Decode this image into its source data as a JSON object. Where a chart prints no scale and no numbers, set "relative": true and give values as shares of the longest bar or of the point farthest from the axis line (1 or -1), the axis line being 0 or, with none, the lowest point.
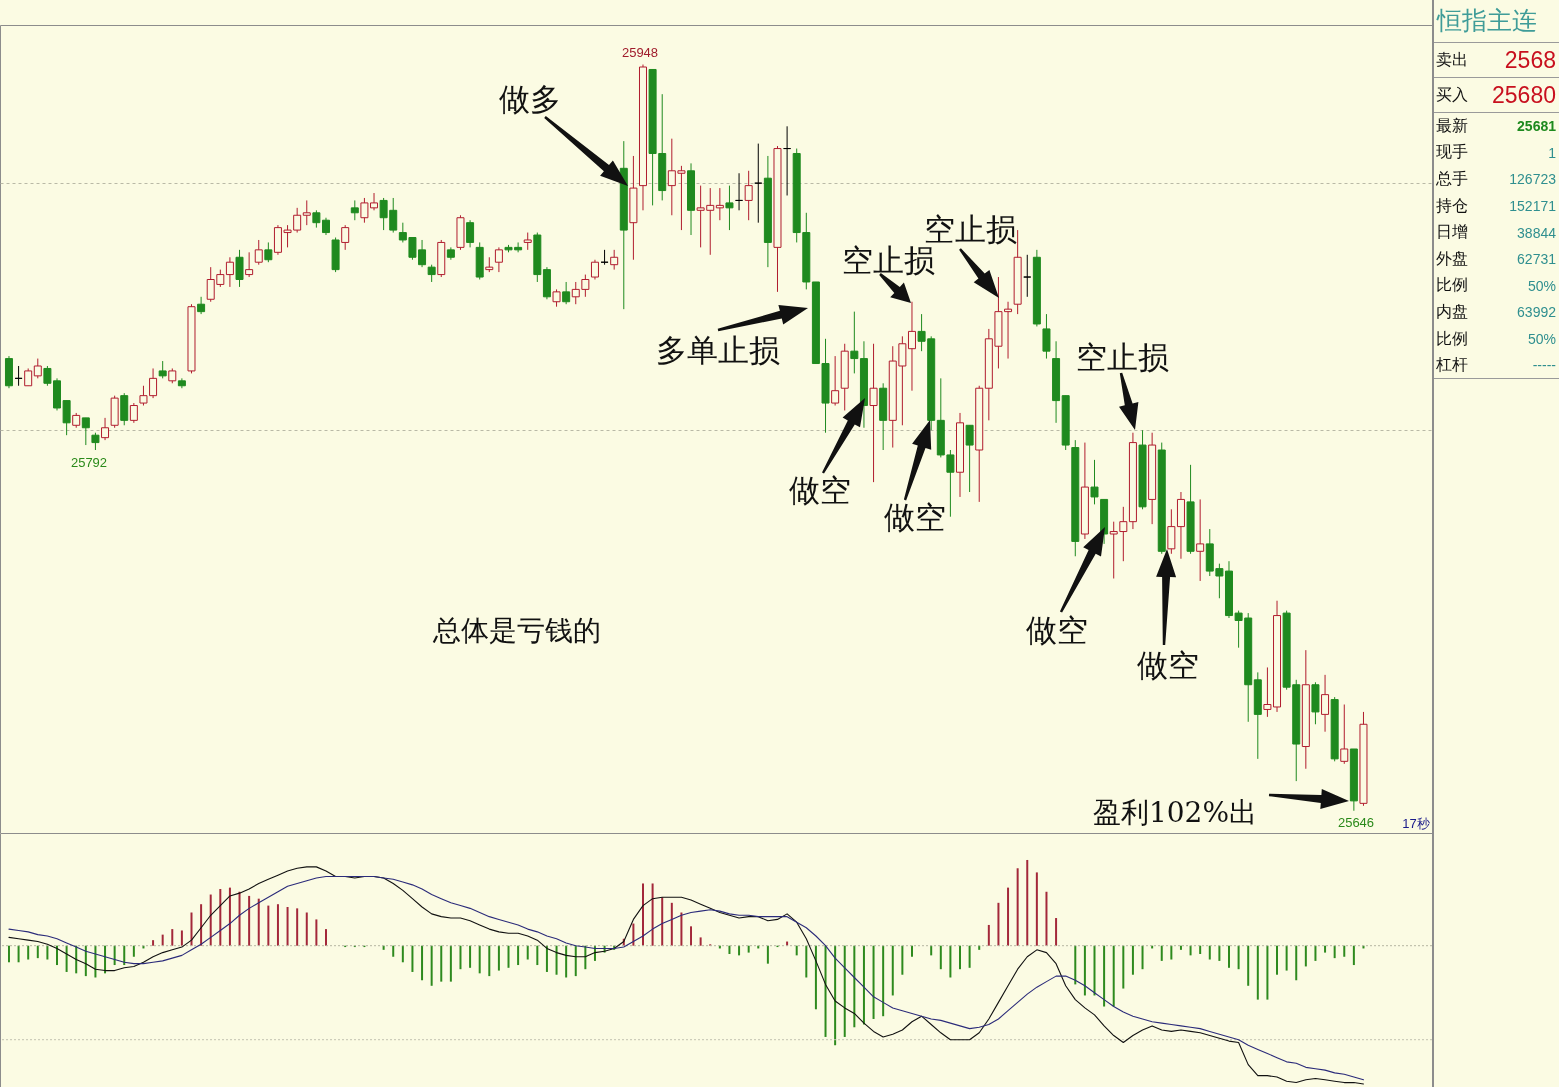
{
  "chart_data": [
    {
      "type": "candlestick",
      "categories": [
        null,
        null,
        null,
        null,
        null,
        null,
        null,
        null,
        null,
        null,
        null,
        null,
        null,
        null,
        null,
        null,
        null,
        null,
        null,
        null,
        null,
        null,
        null,
        null,
        null,
        null,
        null,
        null,
        null,
        null,
        null,
        null,
        null,
        null,
        null,
        null,
        null,
        null,
        null,
        null,
        null,
        null,
        null,
        null,
        null,
        null,
        null,
        null,
        null,
        null,
        null,
        null,
        null,
        null,
        null,
        null,
        null,
        null,
        null,
        null,
        null,
        null,
        null,
        null,
        null,
        null,
        null,
        null,
        null,
        null,
        null,
        null,
        null,
        null,
        null,
        null,
        null,
        null,
        null,
        null,
        null,
        null,
        null,
        null,
        null,
        null,
        null,
        null,
        null,
        null,
        null,
        null,
        null,
        null,
        null,
        null,
        null,
        null,
        null,
        null,
        null,
        null,
        null,
        null,
        null,
        null,
        null,
        null,
        null,
        null,
        null,
        null,
        null,
        null,
        null,
        null,
        null,
        null,
        null,
        null,
        null,
        null,
        null,
        null,
        null,
        null,
        null,
        null,
        null,
        null,
        null,
        null,
        null,
        null,
        null,
        null,
        null,
        null,
        null,
        null,
        null,
        null
      ],
      "ohlc": [
        [
          25829,
          25830,
          25817,
          25818
        ],
        [
          25821,
          25826,
          25818,
          25821
        ],
        [
          25818,
          25825,
          25818,
          25824
        ],
        [
          25822,
          25829,
          25821,
          25826
        ],
        [
          25825,
          25826,
          25818,
          25819
        ],
        [
          25820,
          25821,
          25808,
          25809
        ],
        [
          25812,
          25812,
          25798,
          25803
        ],
        [
          25802,
          25807,
          25801,
          25806
        ],
        [
          25805,
          25805,
          25794,
          25801
        ],
        [
          25798,
          25799,
          25792,
          25795
        ],
        [
          25797,
          25805,
          25796,
          25801
        ],
        [
          25802,
          25814,
          25801,
          25813
        ],
        [
          25814,
          25815,
          25802,
          25804
        ],
        [
          25804,
          25811,
          25803,
          25810
        ],
        [
          25811,
          25818,
          25810,
          25814
        ],
        [
          25814,
          25825,
          25813,
          25821
        ],
        [
          25824,
          25828,
          25821,
          25822
        ],
        [
          25820,
          25825,
          25819,
          25824
        ],
        [
          25820,
          25821,
          25817,
          25818
        ],
        [
          25824,
          25851,
          25823,
          25850
        ],
        [
          25851,
          25854,
          25847,
          25848
        ],
        [
          25853,
          25866,
          25852,
          25861
        ],
        [
          25859,
          25865,
          25858,
          25863
        ],
        [
          25863,
          25870,
          25858,
          25868
        ],
        [
          25870,
          25873,
          25858,
          25861
        ],
        [
          25863,
          25872,
          25862,
          25865
        ],
        [
          25868,
          25877,
          25867,
          25873
        ],
        [
          25873,
          25876,
          25868,
          25869
        ],
        [
          25872,
          25883,
          25871,
          25882
        ],
        [
          25880,
          25883,
          25874,
          25881
        ],
        [
          25881,
          25890,
          25880,
          25887
        ],
        [
          25887,
          25893,
          25883,
          25888
        ],
        [
          25888,
          25889,
          25882,
          25884
        ],
        [
          25885,
          25886,
          25879,
          25880
        ],
        [
          25877,
          25878,
          25864,
          25865
        ],
        [
          25876,
          25883,
          25873,
          25882
        ],
        [
          25890,
          25893,
          25885,
          25888
        ],
        [
          25886,
          25894,
          25884,
          25892
        ],
        [
          25890,
          25896,
          25889,
          25892
        ],
        [
          25893,
          25894,
          25881,
          25886
        ],
        [
          25889,
          25894,
          25880,
          25881
        ],
        [
          25880,
          25884,
          25876,
          25877
        ],
        [
          25878,
          25878,
          25869,
          25870
        ],
        [
          25873,
          25877,
          25866,
          25867
        ],
        [
          25866,
          25867,
          25860,
          25863
        ],
        [
          25863,
          25877,
          25862,
          25876
        ],
        [
          25873,
          25874,
          25869,
          25870
        ],
        [
          25874,
          25887,
          25873,
          25886
        ],
        [
          25884,
          25885,
          25874,
          25876
        ],
        [
          25874,
          25876,
          25861,
          25862
        ],
        [
          25865,
          25870,
          25864,
          25866
        ],
        [
          25868,
          25874,
          25864,
          25873
        ],
        [
          25874,
          25875,
          25872,
          25873
        ],
        [
          25874,
          25876,
          25872,
          25873
        ],
        [
          25876,
          25880,
          25873,
          25877
        ],
        [
          25879,
          25880,
          25860,
          25863
        ],
        [
          25865,
          25866,
          25853,
          25854
        ],
        [
          25852,
          25857,
          25850,
          25856
        ],
        [
          25856,
          25860,
          25851,
          25852
        ],
        [
          25854,
          25860,
          25851,
          25857
        ],
        [
          25857,
          25863,
          25854,
          25861
        ],
        [
          25862,
          25869,
          25861,
          25868
        ],
        [
          25868,
          25873,
          25867,
          25868
        ],
        [
          25867,
          25873,
          25865,
          25870
        ],
        [
          25906,
          25917,
          25849,
          25881
        ],
        [
          25884,
          25911,
          25869,
          25898
        ],
        [
          25899,
          25948,
          25889,
          25947
        ],
        [
          25946,
          25946,
          25891,
          25912
        ],
        [
          25912,
          25936,
          25893,
          25897
        ],
        [
          25899,
          25918,
          25887,
          25905
        ],
        [
          25904,
          25907,
          25881,
          25905
        ],
        [
          25905,
          25908,
          25879,
          25889
        ],
        [
          25889,
          25899,
          25874,
          25890
        ],
        [
          25889,
          25898,
          25871,
          25891
        ],
        [
          25890,
          25898,
          25885,
          25891
        ],
        [
          25892,
          25899,
          25881,
          25890
        ],
        [
          25893,
          25904,
          25889,
          25893
        ],
        [
          25893,
          25905,
          25885,
          25899
        ],
        [
          25900,
          25916,
          25884,
          25900
        ],
        [
          25902,
          25911,
          25866,
          25876
        ],
        [
          25874,
          25915,
          25856,
          25914
        ],
        [
          25914,
          25923,
          25895,
          25914
        ],
        [
          25912,
          25914,
          25876,
          25880
        ],
        [
          25880,
          25888,
          25857,
          25860
        ],
        [
          25860,
          25860,
          25827,
          25827
        ],
        [
          25827,
          25837,
          25799,
          25811
        ],
        [
          25811,
          25830,
          25810,
          25816
        ],
        [
          25817,
          25835,
          25808,
          25832
        ],
        [
          25832,
          25848,
          25823,
          25829
        ],
        [
          25829,
          25836,
          25801,
          25810
        ],
        [
          25810,
          25835,
          25779,
          25817
        ],
        [
          25817,
          25819,
          25792,
          25804
        ],
        [
          25804,
          25834,
          25793,
          25828
        ],
        [
          25826,
          25838,
          25802,
          25835
        ],
        [
          25833,
          25852,
          25816,
          25840
        ],
        [
          25840,
          25847,
          25832,
          25836
        ],
        [
          25837,
          25838,
          25800,
          25804
        ],
        [
          25804,
          25821,
          25789,
          25790
        ],
        [
          25790,
          25792,
          25765,
          25783
        ],
        [
          25783,
          25807,
          25773,
          25803
        ],
        [
          25802,
          25802,
          25775,
          25794
        ],
        [
          25792,
          25818,
          25771,
          25817
        ],
        [
          25817,
          25841,
          25804,
          25837
        ],
        [
          25834,
          25862,
          25825,
          25848
        ],
        [
          25848,
          25852,
          25829,
          25849
        ],
        [
          25851,
          25881,
          25847,
          25870
        ],
        [
          25862,
          25871,
          25854,
          25862
        ],
        [
          25870,
          25873,
          25842,
          25843
        ],
        [
          25841,
          25847,
          25829,
          25832
        ],
        [
          25829,
          25836,
          25803,
          25812
        ],
        [
          25814,
          25814,
          25792,
          25794
        ],
        [
          25793,
          25796,
          25749,
          25755
        ],
        [
          25758,
          25795,
          25756,
          25777
        ],
        [
          25777,
          25788,
          25770,
          25773
        ],
        [
          25772,
          25772,
          25754,
          25758
        ],
        [
          25758,
          25763,
          25740,
          25759
        ],
        [
          25759,
          25769,
          25747,
          25763
        ],
        [
          25763,
          25799,
          25760,
          25795
        ],
        [
          25794,
          25800,
          25768,
          25769
        ],
        [
          25772,
          25799,
          25762,
          25794
        ],
        [
          25792,
          25795,
          25750,
          25751
        ],
        [
          25752,
          25768,
          25750,
          25761
        ],
        [
          25761,
          25775,
          25748,
          25772
        ],
        [
          25771,
          25786,
          25750,
          25751
        ],
        [
          25751,
          25772,
          25739,
          25754
        ],
        [
          25754,
          25760,
          25741,
          25743
        ],
        [
          25744,
          25746,
          25732,
          25741
        ],
        [
          25743,
          25747,
          25724,
          25725
        ],
        [
          25726,
          25727,
          25712,
          25723
        ],
        [
          25724,
          25726,
          25682,
          25697
        ],
        [
          25699,
          25702,
          25667,
          25685
        ],
        [
          25687,
          25704,
          25684,
          25689
        ],
        [
          25688,
          25731,
          25686,
          25725
        ],
        [
          25726,
          25727,
          25695,
          25696
        ],
        [
          25697,
          25699,
          25658,
          25673
        ],
        [
          25672,
          25711,
          25663,
          25697
        ],
        [
          25697,
          25698,
          25681,
          25686
        ],
        [
          25685,
          25701,
          25678,
          25693
        ],
        [
          25691,
          25692,
          25666,
          25667
        ],
        [
          25666,
          25689,
          25665,
          25671
        ],
        [
          25671,
          25671,
          25646,
          25650
        ],
        [
          25649,
          25686,
          25648,
          25681
        ]
      ],
      "colors": [
        "#1f8a1f",
        "#000000",
        "#b01c2e",
        "#b01c2e",
        "#1f8a1f",
        "#1f8a1f",
        "#1f8a1f",
        "#b01c2e",
        "#1f8a1f",
        "#1f8a1f",
        "#b01c2e",
        "#b01c2e",
        "#1f8a1f",
        "#b01c2e",
        "#b01c2e",
        "#b01c2e",
        "#1f8a1f",
        "#b01c2e",
        "#1f8a1f",
        "#b01c2e",
        "#1f8a1f",
        "#b01c2e",
        "#b01c2e",
        "#b01c2e",
        "#1f8a1f",
        "#b01c2e",
        "#b01c2e",
        "#1f8a1f",
        "#b01c2e",
        "#b01c2e",
        "#b01c2e",
        "#b01c2e",
        "#1f8a1f",
        "#1f8a1f",
        "#1f8a1f",
        "#b01c2e",
        "#1f8a1f",
        "#b01c2e",
        "#b01c2e",
        "#1f8a1f",
        "#1f8a1f",
        "#1f8a1f",
        "#1f8a1f",
        "#1f8a1f",
        "#1f8a1f",
        "#b01c2e",
        "#1f8a1f",
        "#b01c2e",
        "#1f8a1f",
        "#1f8a1f",
        "#b01c2e",
        "#b01c2e",
        "#1f8a1f",
        "#1f8a1f",
        "#b01c2e",
        "#1f8a1f",
        "#1f8a1f",
        "#b01c2e",
        "#1f8a1f",
        "#b01c2e",
        "#b01c2e",
        "#b01c2e",
        "#000000",
        "#b01c2e",
        "#1f8a1f",
        "#b01c2e",
        "#b01c2e",
        "#1f8a1f",
        "#1f8a1f",
        "#b01c2e",
        "#b01c2e",
        "#1f8a1f",
        "#b01c2e",
        "#b01c2e",
        "#b01c2e",
        "#1f8a1f",
        "#000000",
        "#b01c2e",
        "#000000",
        "#1f8a1f",
        "#b01c2e",
        "#000000",
        "#1f8a1f",
        "#1f8a1f",
        "#1f8a1f",
        "#1f8a1f",
        "#b01c2e",
        "#b01c2e",
        "#1f8a1f",
        "#1f8a1f",
        "#b01c2e",
        "#1f8a1f",
        "#b01c2e",
        "#b01c2e",
        "#b01c2e",
        "#1f8a1f",
        "#1f8a1f",
        "#1f8a1f",
        "#1f8a1f",
        "#b01c2e",
        "#1f8a1f",
        "#b01c2e",
        "#b01c2e",
        "#b01c2e",
        "#b01c2e",
        "#b01c2e",
        "#000000",
        "#1f8a1f",
        "#1f8a1f",
        "#1f8a1f",
        "#1f8a1f",
        "#1f8a1f",
        "#b01c2e",
        "#1f8a1f",
        "#1f8a1f",
        "#b01c2e",
        "#b01c2e",
        "#b01c2e",
        "#1f8a1f",
        "#b01c2e",
        "#1f8a1f",
        "#b01c2e",
        "#b01c2e",
        "#1f8a1f",
        "#b01c2e",
        "#1f8a1f",
        "#1f8a1f",
        "#1f8a1f",
        "#1f8a1f",
        "#1f8a1f",
        "#1f8a1f",
        "#b01c2e",
        "#b01c2e",
        "#1f8a1f",
        "#1f8a1f",
        "#b01c2e",
        "#1f8a1f",
        "#b01c2e",
        "#1f8a1f",
        "#b01c2e",
        "#1f8a1f",
        "#b01c2e"
      ],
      "ylim": [
        25637,
        25964
      ],
      "yticks": [
        {
          "value": 25800,
          "label": null
        },
        {
          "value": 25900,
          "label": null
        }
      ],
      "grid": "y",
      "annotations": [
        {
          "text": "25948",
          "y": 25948
        },
        "做多",
        "空止损",
        "空止损",
        "多单止损",
        "空止损",
        "25792",
        "做空",
        "做空",
        "总体是亏钱的",
        "做空",
        "做空",
        "盈利102%出",
        {
          "text": "25646",
          "y": 25646
        },
        "17秒"
      ]
    },
    {
      "type": "bar",
      "relative": true,
      "categories": [
        null,
        null,
        null,
        null,
        null,
        null,
        null,
        null,
        null,
        null,
        null,
        null,
        null,
        null,
        null,
        null,
        null,
        null,
        null,
        null,
        null,
        null,
        null,
        null,
        null,
        null,
        null,
        null,
        null,
        null,
        null,
        null,
        null,
        null,
        null,
        null,
        null,
        null,
        null,
        null,
        null,
        null,
        null,
        null,
        null,
        null,
        null,
        null,
        null,
        null,
        null,
        null,
        null,
        null,
        null,
        null,
        null,
        null,
        null,
        null,
        null,
        null,
        null,
        null,
        null,
        null,
        null,
        null,
        null,
        null,
        null,
        null,
        null,
        null,
        null,
        null,
        null,
        null,
        null,
        null,
        null,
        null,
        null,
        null,
        null,
        null,
        null,
        null,
        null,
        null,
        null,
        null,
        null,
        null,
        null,
        null,
        null,
        null,
        null,
        null,
        null,
        null,
        null,
        null,
        null,
        null,
        null,
        null,
        null,
        null,
        null,
        null,
        null,
        null,
        null,
        null,
        null,
        null,
        null,
        null,
        null,
        null,
        null,
        null,
        null,
        null,
        null,
        null,
        null,
        null,
        null,
        null,
        null,
        null,
        null,
        null,
        null,
        null,
        null,
        null,
        null,
        null
      ],
      "series": [
        {
          "type": "bar",
          "values": [
            -0.12,
            -0.12,
            -0.1,
            -0.09,
            -0.1,
            -0.14,
            -0.19,
            -0.2,
            -0.22,
            -0.23,
            -0.2,
            -0.14,
            -0.14,
            -0.08,
            -0.02,
            0.04,
            0.08,
            0.12,
            0.11,
            0.24,
            0.3,
            0.37,
            0.41,
            0.42,
            0.39,
            0.36,
            0.34,
            0.29,
            0.3,
            0.28,
            0.27,
            0.24,
            0.19,
            0.12,
            null,
            -0.01,
            -0.01,
            -0.01,
            null,
            -0.03,
            -0.08,
            -0.12,
            -0.19,
            -0.25,
            -0.29,
            -0.26,
            -0.26,
            -0.17,
            -0.16,
            -0.2,
            -0.22,
            -0.18,
            -0.16,
            -0.14,
            -0.1,
            -0.14,
            -0.19,
            -0.21,
            -0.23,
            -0.22,
            -0.17,
            -0.11,
            -0.05,
            -0.03,
            0.05,
            0.16,
            0.45,
            0.45,
            0.35,
            0.31,
            0.24,
            0.14,
            0.06,
            0.01,
            -0.02,
            -0.06,
            -0.07,
            -0.05,
            -0.02,
            -0.13,
            -0.01,
            0.03,
            -0.07,
            -0.23,
            -0.46,
            -0.66,
            -0.72,
            -0.66,
            -0.59,
            -0.57,
            -0.53,
            -0.51,
            -0.36,
            -0.21,
            -0.08,
            null,
            -0.07,
            -0.17,
            -0.23,
            -0.17,
            -0.16,
            -0.03,
            0.15,
            0.31,
            0.42,
            0.56,
            0.62,
            0.53,
            0.39,
            0.2,
            null,
            -0.28,
            -0.36,
            -0.36,
            -0.44,
            -0.44,
            -0.31,
            -0.21,
            -0.17,
            -0.02,
            -0.11,
            -0.1,
            -0.03,
            -0.07,
            -0.06,
            -0.1,
            -0.11,
            -0.16,
            -0.17,
            -0.29,
            -0.39,
            -0.39,
            -0.21,
            -0.18,
            -0.25,
            -0.15,
            -0.11,
            -0.05,
            -0.09,
            -0.08,
            -0.14,
            -0.02
          ],
          "colors": [
            "#2e8a1e",
            "#2e8a1e",
            "#2e8a1e",
            "#2e8a1e",
            "#2e8a1e",
            "#2e8a1e",
            "#2e8a1e",
            "#2e8a1e",
            "#2e8a1e",
            "#2e8a1e",
            "#2e8a1e",
            "#2e8a1e",
            "#2e8a1e",
            "#2e8a1e",
            "#2e8a1e",
            "#a3283a",
            "#a3283a",
            "#a3283a",
            "#a3283a",
            "#a3283a",
            "#a3283a",
            "#a3283a",
            "#a3283a",
            "#a3283a",
            "#a3283a",
            "#a3283a",
            "#a3283a",
            "#a3283a",
            "#a3283a",
            "#a3283a",
            "#a3283a",
            "#a3283a",
            "#a3283a",
            "#a3283a",
            null,
            "#2e8a1e",
            "#2e8a1e",
            "#2e8a1e",
            null,
            "#2e8a1e",
            "#2e8a1e",
            "#2e8a1e",
            "#2e8a1e",
            "#2e8a1e",
            "#2e8a1e",
            "#2e8a1e",
            "#2e8a1e",
            "#2e8a1e",
            "#2e8a1e",
            "#2e8a1e",
            "#2e8a1e",
            "#2e8a1e",
            "#2e8a1e",
            "#2e8a1e",
            "#2e8a1e",
            "#2e8a1e",
            "#2e8a1e",
            "#2e8a1e",
            "#2e8a1e",
            "#2e8a1e",
            "#2e8a1e",
            "#2e8a1e",
            "#2e8a1e",
            "#2e8a1e",
            "#a3283a",
            "#a3283a",
            "#a3283a",
            "#a3283a",
            "#a3283a",
            "#a3283a",
            "#a3283a",
            "#a3283a",
            "#a3283a",
            "#a3283a",
            "#2e8a1e",
            "#2e8a1e",
            "#2e8a1e",
            "#2e8a1e",
            "#2e8a1e",
            "#2e8a1e",
            "#2e8a1e",
            "#a3283a",
            "#2e8a1e",
            "#2e8a1e",
            "#2e8a1e",
            "#2e8a1e",
            "#2e8a1e",
            "#2e8a1e",
            "#2e8a1e",
            "#2e8a1e",
            "#2e8a1e",
            "#2e8a1e",
            "#2e8a1e",
            "#2e8a1e",
            "#2e8a1e",
            null,
            "#2e8a1e",
            "#2e8a1e",
            "#2e8a1e",
            "#2e8a1e",
            "#2e8a1e",
            "#2e8a1e",
            "#a3283a",
            "#a3283a",
            "#a3283a",
            "#a3283a",
            "#a3283a",
            "#a3283a",
            "#a3283a",
            "#a3283a",
            null,
            "#2e8a1e",
            "#2e8a1e",
            "#2e8a1e",
            "#2e8a1e",
            "#2e8a1e",
            "#2e8a1e",
            "#2e8a1e",
            "#2e8a1e",
            "#2e8a1e",
            "#2e8a1e",
            "#2e8a1e",
            "#2e8a1e",
            "#2e8a1e",
            "#2e8a1e",
            "#2e8a1e",
            "#2e8a1e",
            "#2e8a1e",
            "#2e8a1e",
            "#2e8a1e",
            "#2e8a1e",
            "#2e8a1e",
            "#2e8a1e",
            "#2e8a1e",
            "#2e8a1e",
            "#2e8a1e",
            "#2e8a1e",
            "#2e8a1e",
            "#2e8a1e",
            "#2e8a1e",
            "#2e8a1e",
            "#2e8a1e"
          ]
        },
        {
          "type": "line",
          "color": "#111111",
          "values": [
            0.06,
            0.05,
            0.04,
            0.03,
            0.01,
            -0.02,
            -0.06,
            -0.1,
            -0.13,
            -0.17,
            -0.18,
            -0.18,
            -0.16,
            -0.15,
            -0.12,
            -0.08,
            -0.05,
            -0.03,
            -0.01,
            0.04,
            0.13,
            0.22,
            0.29,
            0.36,
            0.38,
            0.41,
            0.45,
            0.48,
            0.51,
            0.54,
            0.56,
            0.57,
            0.57,
            0.54,
            0.5,
            0.5,
            0.49,
            0.5,
            0.5,
            0.49,
            0.45,
            0.4,
            0.34,
            0.28,
            0.23,
            0.21,
            0.2,
            0.2,
            0.18,
            0.15,
            0.12,
            0.1,
            0.09,
            0.09,
            0.07,
            0.04,
            -0.02,
            -0.05,
            -0.07,
            -0.08,
            -0.08,
            -0.05,
            -0.04,
            -0.02,
            0.03,
            0.19,
            0.29,
            0.34,
            0.35,
            0.35,
            0.35,
            0.33,
            0.3,
            0.27,
            0.24,
            0.22,
            0.2,
            0.21,
            0.21,
            0.18,
            0.19,
            0.23,
            0.17,
            0.05,
            -0.11,
            -0.28,
            -0.4,
            -0.45,
            -0.49,
            -0.56,
            -0.62,
            -0.66,
            -0.64,
            -0.61,
            -0.55,
            -0.51,
            -0.57,
            -0.63,
            -0.68,
            -0.68,
            -0.68,
            -0.63,
            -0.53,
            -0.41,
            -0.29,
            -0.17,
            -0.08,
            -0.03,
            -0.05,
            -0.13,
            -0.29,
            -0.39,
            -0.45,
            -0.5,
            -0.58,
            -0.65,
            -0.7,
            -0.65,
            -0.61,
            -0.58,
            -0.61,
            -0.62,
            -0.61,
            -0.62,
            -0.63,
            -0.65,
            -0.67,
            -0.69,
            -0.7,
            -0.86,
            -0.94,
            -0.94,
            -0.95,
            -0.98,
            -0.99,
            -0.97,
            -0.96,
            -0.97,
            -0.98,
            -0.99,
            -0.99,
            -1.0
          ]
        },
        {
          "type": "line",
          "color": "#2b2b7a",
          "values": [
            0.12,
            0.11,
            0.1,
            0.08,
            0.07,
            0.05,
            0.02,
            -0.01,
            -0.04,
            -0.06,
            -0.08,
            -0.1,
            -0.12,
            -0.13,
            -0.13,
            -0.12,
            -0.11,
            -0.09,
            -0.07,
            -0.03,
            0.01,
            0.06,
            0.11,
            0.16,
            0.22,
            0.27,
            0.31,
            0.35,
            0.39,
            0.43,
            0.45,
            0.47,
            0.49,
            0.5,
            0.5,
            0.5,
            0.5,
            0.5,
            0.5,
            0.49,
            0.48,
            0.46,
            0.44,
            0.41,
            0.37,
            0.34,
            0.31,
            0.29,
            0.27,
            0.24,
            0.21,
            0.19,
            0.17,
            0.15,
            0.12,
            0.1,
            0.07,
            0.05,
            0.02,
            0.0,
            -0.01,
            -0.02,
            -0.02,
            -0.02,
            -0.01,
            0.03,
            0.07,
            0.12,
            0.16,
            0.19,
            0.22,
            0.24,
            0.25,
            0.26,
            0.25,
            0.23,
            0.22,
            0.22,
            0.21,
            0.21,
            0.21,
            0.21,
            0.17,
            0.13,
            0.07,
            0.0,
            -0.09,
            -0.16,
            -0.23,
            -0.3,
            -0.37,
            -0.41,
            -0.45,
            -0.47,
            -0.49,
            -0.51,
            -0.53,
            -0.54,
            -0.56,
            -0.58,
            -0.6,
            -0.59,
            -0.57,
            -0.53,
            -0.47,
            -0.41,
            -0.35,
            -0.3,
            -0.26,
            -0.22,
            -0.22,
            -0.25,
            -0.29,
            -0.34,
            -0.39,
            -0.44,
            -0.48,
            -0.51,
            -0.53,
            -0.55,
            -0.56,
            -0.57,
            -0.58,
            -0.59,
            -0.6,
            -0.62,
            -0.64,
            -0.66,
            -0.68,
            -0.72,
            -0.75,
            -0.78,
            -0.81,
            -0.84,
            -0.85,
            -0.88,
            -0.89,
            -0.9,
            -0.92,
            -0.93,
            -0.95,
            -0.97
          ]
        }
      ],
      "ref_lines": [
        {
          "axis": "y",
          "value": 0,
          "color": "#b5b5a2",
          "line_style": "dotted"
        },
        {
          "axis": "y",
          "value": -0.68,
          "color": "#c2c2b2",
          "line_style": "dotted"
        }
      ]
    },
    {
      "type": "other",
      "title": "恒指主连",
      "annotations": [
        "卖出",
        "2568",
        "买入",
        "25680",
        "最新",
        "25681",
        "现手",
        "1",
        "总手",
        "126723",
        "持仓",
        "152171",
        "日增",
        "38844",
        "外盘",
        "62731",
        "比例",
        "50%",
        "内盘",
        "63992",
        "比例",
        "50%",
        "杠杆",
        "-----"
      ]
    }
  ]
}
